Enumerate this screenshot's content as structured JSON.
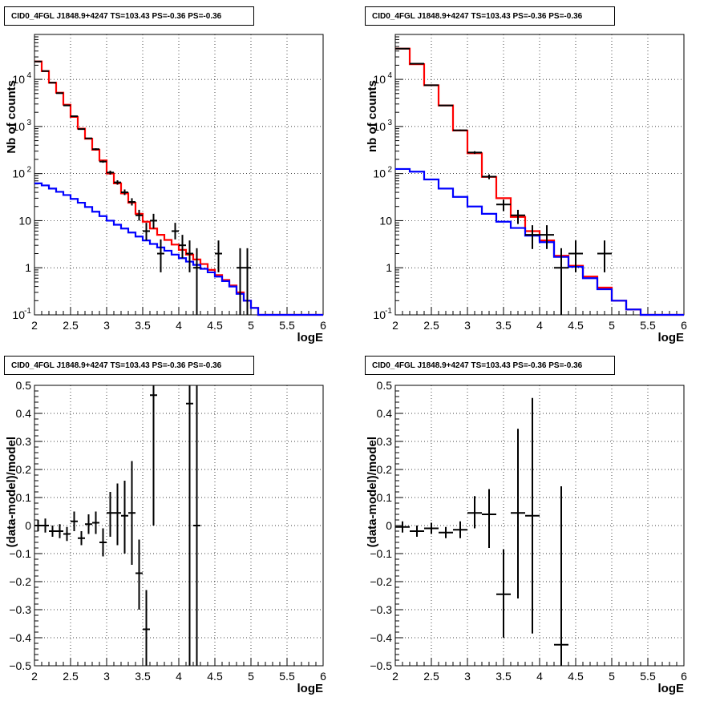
{
  "chart_data": [
    {
      "type": "line",
      "title": "CID0_4FGL J1848.9+4247 TS=103.43 PS=-0.36 PS=-0.36",
      "xlabel": "logE",
      "ylabel": "Nb of counts",
      "xlim": [
        2,
        6
      ],
      "ylim": [
        0.1,
        90000
      ],
      "yscale": "log",
      "grid": true,
      "xticks": [
        "2",
        "2.5",
        "3",
        "3.5",
        "4",
        "4.5",
        "5",
        "5.5",
        "6"
      ],
      "yticks": [
        {
          "v": 0.1,
          "label": "10",
          "sup": "-1"
        },
        {
          "v": 1,
          "label": "1",
          "sup": ""
        },
        {
          "v": 10,
          "label": "10",
          "sup": ""
        },
        {
          "v": 100,
          "label": "10",
          "sup": "2"
        },
        {
          "v": 1000,
          "label": "10",
          "sup": "3"
        },
        {
          "v": 10000,
          "label": "10",
          "sup": "4"
        }
      ],
      "bin_width": 0.1,
      "series": [
        {
          "color": "#ff0000",
          "kind": "hist",
          "edges": [
            2.0,
            2.1,
            2.2,
            2.3,
            2.4,
            2.5,
            2.6,
            2.7,
            2.8,
            2.9,
            3.0,
            3.1,
            3.2,
            3.3,
            3.4,
            3.5,
            3.6,
            3.7,
            3.8,
            3.9,
            4.0,
            4.1,
            4.2,
            4.3,
            4.4,
            4.5,
            4.6,
            4.7,
            4.8,
            4.9,
            5.0,
            5.1,
            5.2,
            5.3,
            5.4,
            5.5,
            5.6,
            5.7,
            5.8,
            5.9,
            6.0
          ],
          "values": [
            24000,
            15000,
            8500,
            5200,
            2900,
            1600,
            900,
            550,
            320,
            190,
            100,
            62,
            38,
            24,
            14,
            9.5,
            6.8,
            5.0,
            3.9,
            3.1,
            2.4,
            1.9,
            1.5,
            1.2,
            0.9,
            0.7,
            0.55,
            0.42,
            0.3,
            0.2,
            0.14,
            0.1,
            0.1,
            0.1,
            0.1,
            0.1,
            0.1,
            0.1,
            0.1,
            0.1
          ]
        },
        {
          "color": "#0000ff",
          "kind": "hist",
          "edges": [
            2.0,
            2.1,
            2.2,
            2.3,
            2.4,
            2.5,
            2.6,
            2.7,
            2.8,
            2.9,
            3.0,
            3.1,
            3.2,
            3.3,
            3.4,
            3.5,
            3.6,
            3.7,
            3.8,
            3.9,
            4.0,
            4.1,
            4.2,
            4.3,
            4.4,
            4.5,
            4.6,
            4.7,
            4.8,
            4.9,
            5.0,
            5.1,
            5.2,
            5.3,
            5.4,
            5.5,
            5.6,
            5.7,
            5.8,
            5.9,
            6.0
          ],
          "values": [
            62,
            56,
            48,
            41,
            35,
            29,
            24,
            19.5,
            15.5,
            12.5,
            10,
            8.2,
            6.8,
            5.6,
            4.6,
            3.8,
            3.2,
            2.7,
            2.3,
            1.9,
            1.6,
            1.35,
            1.15,
            0.95,
            0.8,
            0.65,
            0.52,
            0.4,
            0.28,
            0.2,
            0.14,
            0.1,
            0.1,
            0.1,
            0.1,
            0.1,
            0.1,
            0.1,
            0.1,
            0.1
          ]
        }
      ],
      "points": {
        "x": [
          2.05,
          2.15,
          2.25,
          2.35,
          2.45,
          2.55,
          2.65,
          2.75,
          2.85,
          2.95,
          3.05,
          3.15,
          3.25,
          3.35,
          3.45,
          3.55,
          3.65,
          3.75,
          3.95,
          4.05,
          4.15,
          4.25,
          4.55,
          4.85,
          4.95
        ],
        "y": [
          24000,
          15000,
          8500,
          5100,
          2800,
          1650,
          880,
          560,
          330,
          180,
          105,
          65,
          40,
          25,
          13,
          6,
          10,
          2,
          6,
          3,
          2,
          1,
          2,
          1,
          1
        ],
        "ylow": [
          23800,
          14850,
          8400,
          5050,
          2760,
          1620,
          860,
          545,
          315,
          170,
          95,
          58,
          35,
          21,
          10,
          3.8,
          6.8,
          0.8,
          4,
          1.6,
          0.8,
          0.1,
          0.8,
          0.1,
          0.1
        ],
        "yhigh": [
          24200,
          15150,
          8600,
          5150,
          2840,
          1680,
          900,
          575,
          345,
          190,
          115,
          72,
          46,
          30,
          17,
          9,
          14,
          4,
          9,
          5,
          3.8,
          2.6,
          3.8,
          2.6,
          2.6
        ]
      }
    },
    {
      "type": "line",
      "title": "CID0_4FGL J1848.9+4247 TS=103.43 PS=-0.36 PS=-0.36",
      "xlabel": "logE",
      "ylabel": "nb of counts",
      "xlim": [
        2,
        6
      ],
      "ylim": [
        0.1,
        90000
      ],
      "yscale": "log",
      "grid": true,
      "xticks": [
        "2",
        "2.5",
        "3",
        "3.5",
        "4",
        "4.5",
        "5",
        "5.5",
        "6"
      ],
      "yticks": [
        {
          "v": 0.1,
          "label": "10",
          "sup": "-1"
        },
        {
          "v": 1,
          "label": "1",
          "sup": ""
        },
        {
          "v": 10,
          "label": "10",
          "sup": ""
        },
        {
          "v": 100,
          "label": "10",
          "sup": "2"
        },
        {
          "v": 1000,
          "label": "10",
          "sup": "3"
        },
        {
          "v": 10000,
          "label": "10",
          "sup": "4"
        }
      ],
      "bin_width": 0.2,
      "series": [
        {
          "color": "#ff0000",
          "kind": "hist",
          "edges": [
            2.0,
            2.2,
            2.4,
            2.6,
            2.8,
            3.0,
            3.2,
            3.4,
            3.6,
            3.8,
            4.0,
            4.2,
            4.4,
            4.6,
            4.8,
            5.0,
            5.2,
            5.4,
            5.6,
            5.8,
            6.0
          ],
          "values": [
            45000,
            21000,
            7500,
            2800,
            820,
            270,
            85,
            30,
            12,
            6,
            3.8,
            1.8,
            1.1,
            0.65,
            0.38,
            0.2,
            0.13,
            0.1,
            0.1,
            0.1
          ]
        },
        {
          "color": "#0000ff",
          "kind": "hist",
          "edges": [
            2.0,
            2.2,
            2.4,
            2.6,
            2.8,
            3.0,
            3.2,
            3.4,
            3.6,
            3.8,
            4.0,
            4.2,
            4.4,
            4.6,
            4.8,
            5.0,
            5.2,
            5.4,
            5.6,
            5.8,
            6.0
          ],
          "values": [
            125,
            110,
            75,
            48,
            32,
            20,
            14,
            9.5,
            7,
            4.8,
            3.5,
            1.7,
            1.05,
            0.6,
            0.35,
            0.2,
            0.13,
            0.1,
            0.1,
            0.1
          ]
        }
      ],
      "points": {
        "x": [
          2.1,
          2.3,
          2.5,
          2.7,
          2.9,
          3.1,
          3.3,
          3.5,
          3.7,
          3.9,
          4.1,
          4.3,
          4.5,
          4.9
        ],
        "y": [
          45000,
          21500,
          7500,
          2800,
          830,
          280,
          86,
          22,
          13,
          5,
          5,
          1,
          2,
          2
        ],
        "ylow": [
          44700,
          21300,
          7400,
          2740,
          800,
          262,
          76,
          16,
          8.5,
          2.5,
          2.5,
          0.1,
          0.8,
          0.8
        ],
        "yhigh": [
          45300,
          21700,
          7600,
          2860,
          860,
          298,
          96,
          28,
          17,
          8,
          8,
          2.6,
          3.8,
          3.8
        ]
      }
    },
    {
      "type": "scatter",
      "title": "CID0_4FGL J1848.9+4247 TS=103.43 PS=-0.36 PS=-0.36",
      "xlabel": "logE",
      "ylabel": "(data-model)/model",
      "xlim": [
        2,
        6
      ],
      "ylim": [
        -0.5,
        0.5
      ],
      "yscale": "linear",
      "grid": true,
      "xticks": [
        "2",
        "2.5",
        "3",
        "3.5",
        "4",
        "4.5",
        "5",
        "5.5",
        "6"
      ],
      "yticks": [
        {
          "v": -0.5,
          "label": "−0.5",
          "sup": ""
        },
        {
          "v": -0.4,
          "label": "−0.4",
          "sup": ""
        },
        {
          "v": -0.3,
          "label": "−0.3",
          "sup": ""
        },
        {
          "v": -0.2,
          "label": "−0.2",
          "sup": ""
        },
        {
          "v": -0.1,
          "label": "−0.1",
          "sup": ""
        },
        {
          "v": 0,
          "label": "0",
          "sup": ""
        },
        {
          "v": 0.1,
          "label": "0.1",
          "sup": ""
        },
        {
          "v": 0.2,
          "label": "0.2",
          "sup": ""
        },
        {
          "v": 0.3,
          "label": "0.3",
          "sup": ""
        },
        {
          "v": 0.4,
          "label": "0.4",
          "sup": ""
        },
        {
          "v": 0.5,
          "label": "0.5",
          "sup": ""
        }
      ],
      "bin_width": 0.1,
      "series": [],
      "points": {
        "x": [
          2.05,
          2.15,
          2.25,
          2.35,
          2.45,
          2.55,
          2.65,
          2.75,
          2.85,
          2.95,
          3.05,
          3.15,
          3.25,
          3.35,
          3.45,
          3.55,
          3.65,
          4.15,
          4.25
        ],
        "y": [
          0.0,
          0.0,
          -0.02,
          -0.02,
          -0.03,
          0.015,
          -0.045,
          0.005,
          0.01,
          -0.06,
          0.045,
          0.045,
          0.035,
          0.045,
          -0.17,
          -0.37,
          0.465,
          0.435,
          0.0
        ],
        "ylow": [
          -0.02,
          -0.025,
          -0.04,
          -0.045,
          -0.055,
          -0.02,
          -0.07,
          -0.03,
          -0.03,
          -0.11,
          -0.04,
          -0.07,
          -0.1,
          -0.14,
          -0.3,
          -0.5,
          0.0,
          -0.5,
          -0.5
        ],
        "yhigh": [
          0.02,
          0.025,
          0.0,
          0.005,
          -0.005,
          0.05,
          -0.02,
          0.04,
          0.05,
          -0.01,
          0.12,
          0.15,
          0.16,
          0.23,
          -0.05,
          -0.23,
          0.5,
          0.5,
          0.5
        ]
      }
    },
    {
      "type": "scatter",
      "title": "CID0_4FGL J1848.9+4247 TS=103.43 PS=-0.36 PS=-0.36",
      "xlabel": "logE",
      "ylabel": "(data-model)/model",
      "xlim": [
        2,
        6
      ],
      "ylim": [
        -0.5,
        0.5
      ],
      "yscale": "linear",
      "grid": true,
      "xticks": [
        "2",
        "2.5",
        "3",
        "3.5",
        "4",
        "4.5",
        "5",
        "5.5",
        "6"
      ],
      "yticks": [
        {
          "v": -0.5,
          "label": "−0.5",
          "sup": ""
        },
        {
          "v": -0.4,
          "label": "−0.4",
          "sup": ""
        },
        {
          "v": -0.3,
          "label": "−0.3",
          "sup": ""
        },
        {
          "v": -0.2,
          "label": "−0.2",
          "sup": ""
        },
        {
          "v": -0.1,
          "label": "−0.1",
          "sup": ""
        },
        {
          "v": 0,
          "label": "0",
          "sup": ""
        },
        {
          "v": 0.1,
          "label": "0.1",
          "sup": ""
        },
        {
          "v": 0.2,
          "label": "0.2",
          "sup": ""
        },
        {
          "v": 0.3,
          "label": "0.3",
          "sup": ""
        },
        {
          "v": 0.4,
          "label": "0.4",
          "sup": ""
        },
        {
          "v": 0.5,
          "label": "0.5",
          "sup": ""
        }
      ],
      "bin_width": 0.2,
      "series": [],
      "points": {
        "x": [
          2.1,
          2.3,
          2.5,
          2.7,
          2.9,
          3.1,
          3.3,
          3.5,
          3.7,
          3.9,
          4.3
        ],
        "y": [
          -0.005,
          -0.02,
          -0.01,
          -0.025,
          -0.015,
          0.045,
          0.04,
          -0.245,
          0.045,
          0.035,
          -0.425
        ],
        "ylow": [
          -0.025,
          -0.04,
          -0.03,
          -0.045,
          -0.045,
          -0.01,
          -0.08,
          -0.4,
          -0.26,
          -0.385,
          -0.5
        ],
        "yhigh": [
          0.015,
          0.0,
          0.01,
          -0.005,
          0.015,
          0.105,
          0.13,
          -0.085,
          0.345,
          0.455,
          0.14
        ]
      }
    }
  ]
}
